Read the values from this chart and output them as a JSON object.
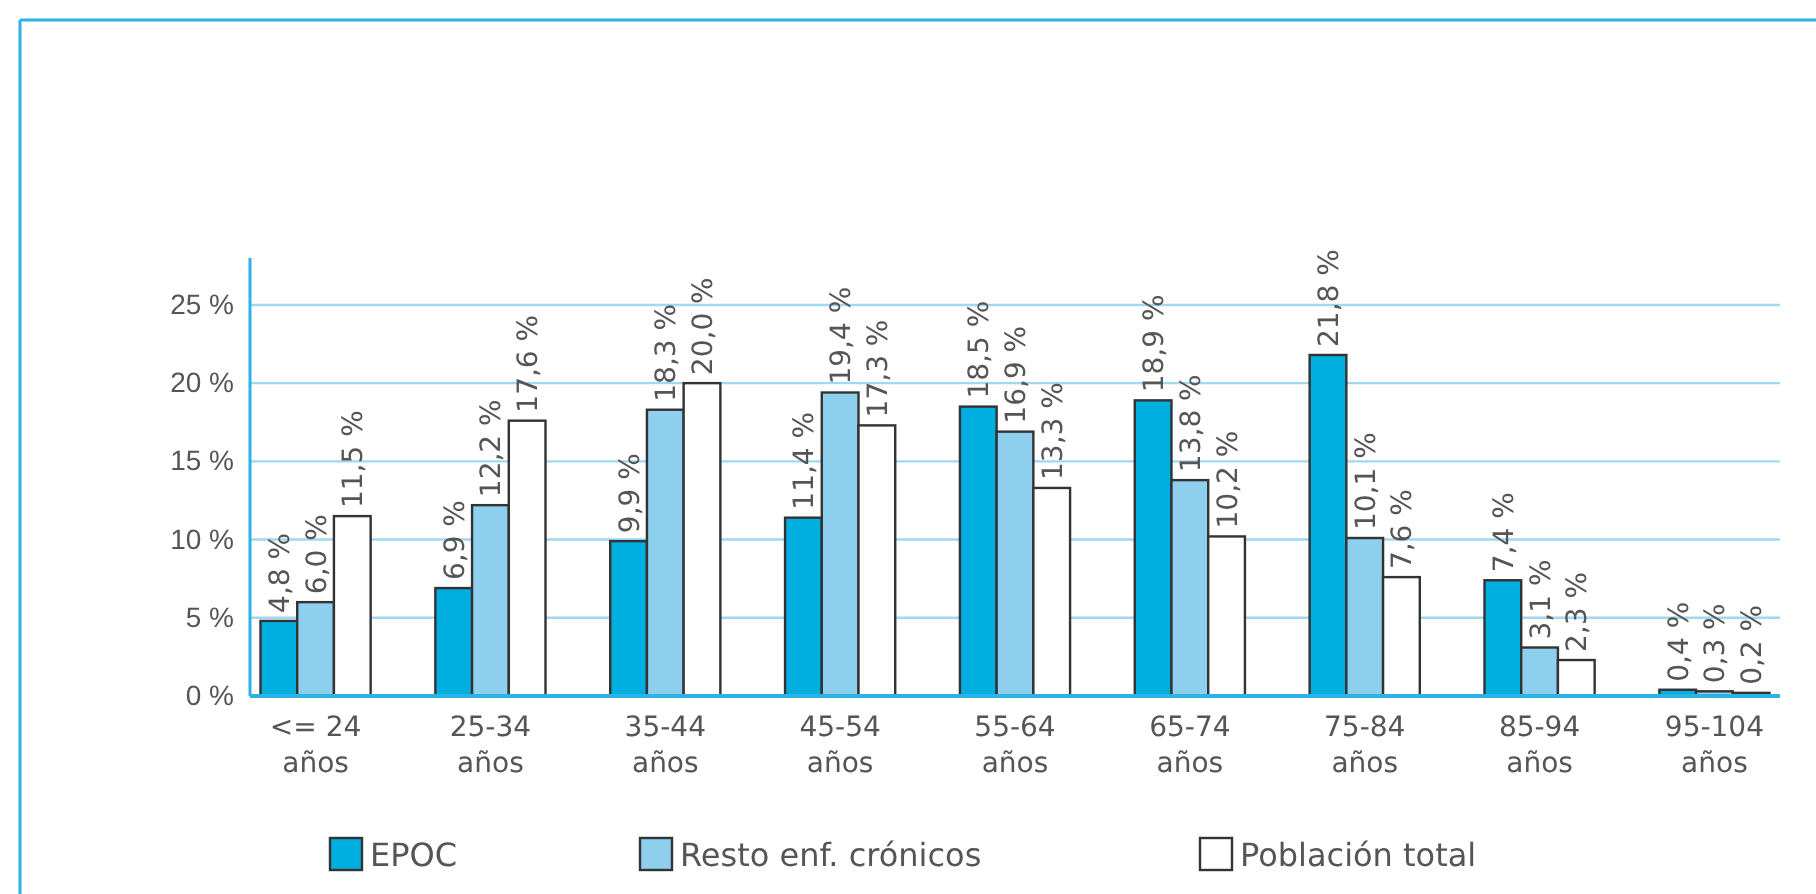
{
  "chart_data": {
    "type": "bar",
    "categories": [
      "<= 24 años",
      "25-34 años",
      "35-44 años",
      "45-54 años",
      "55-64 años",
      "65-74 años",
      "75-84 años",
      "85-94 años",
      "95-104 años"
    ],
    "series": [
      {
        "name": "EPOC",
        "color": "#00aee0",
        "values": [
          4.8,
          6.9,
          9.9,
          11.4,
          18.5,
          18.9,
          21.8,
          7.4,
          0.4
        ],
        "value_labels": [
          "4,8 %",
          "6,9 %",
          "9,9 %",
          "11,4 %",
          "18,5 %",
          "18,9 %",
          "21,8 %",
          "7,4 %",
          "0,4 %"
        ]
      },
      {
        "name": "Resto enf. crónicos",
        "color": "#8ecfee",
        "values": [
          6.0,
          12.2,
          18.3,
          19.4,
          16.9,
          13.8,
          10.1,
          3.1,
          0.3
        ],
        "value_labels": [
          "6,0 %",
          "12,2 %",
          "18,3 %",
          "19,4 %",
          "16,9 %",
          "13,8 %",
          "10,1 %",
          "3,1 %",
          "0,3 %"
        ]
      },
      {
        "name": "Población total",
        "color": "#ffffff",
        "values": [
          11.5,
          17.6,
          20.0,
          17.3,
          13.3,
          10.2,
          7.6,
          2.3,
          0.2
        ],
        "value_labels": [
          "11,5 %",
          "17,6 %",
          "20,0 %",
          "17,3 %",
          "13,3 %",
          "10,2 %",
          "7,6 %",
          "2,3 %",
          "0,2 %"
        ]
      }
    ],
    "ylim": [
      0,
      28
    ],
    "yticks": [
      {
        "value": 0,
        "label": "0 %"
      },
      {
        "value": 5,
        "label": "5 %"
      },
      {
        "value": 10,
        "label": "10 %"
      },
      {
        "value": 15,
        "label": "15 %"
      },
      {
        "value": 20,
        "label": "20 %"
      },
      {
        "value": 25,
        "label": "25 %"
      }
    ],
    "grid": "y",
    "legend": "bottom"
  }
}
